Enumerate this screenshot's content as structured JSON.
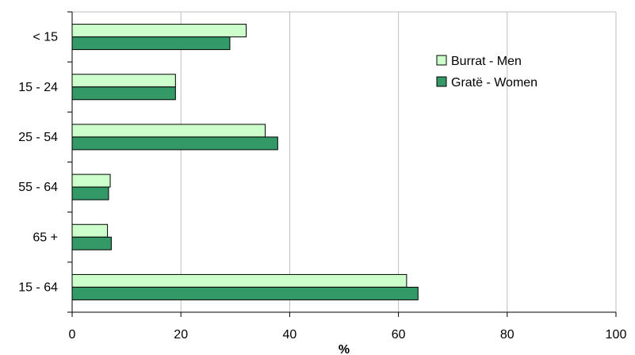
{
  "chart_data": {
    "type": "bar",
    "orientation": "horizontal",
    "categories": [
      "< 15",
      "15 - 24",
      "25 - 54",
      "55 - 64",
      "65 +",
      "15 - 64"
    ],
    "series": [
      {
        "name": "Burrat - Men",
        "values": [
          32,
          19,
          35.5,
          7,
          6.5,
          61.5
        ],
        "color": "#ccffcc"
      },
      {
        "name": "Gratë - Women",
        "values": [
          29,
          19,
          37.8,
          6.7,
          7.2,
          63.6
        ],
        "color": "#339966"
      }
    ],
    "xlabel": "%",
    "xlim": [
      0,
      100
    ],
    "xticks": [
      0,
      20,
      40,
      60,
      80,
      100
    ],
    "grid": "vertical",
    "legend_position": "top-right"
  }
}
